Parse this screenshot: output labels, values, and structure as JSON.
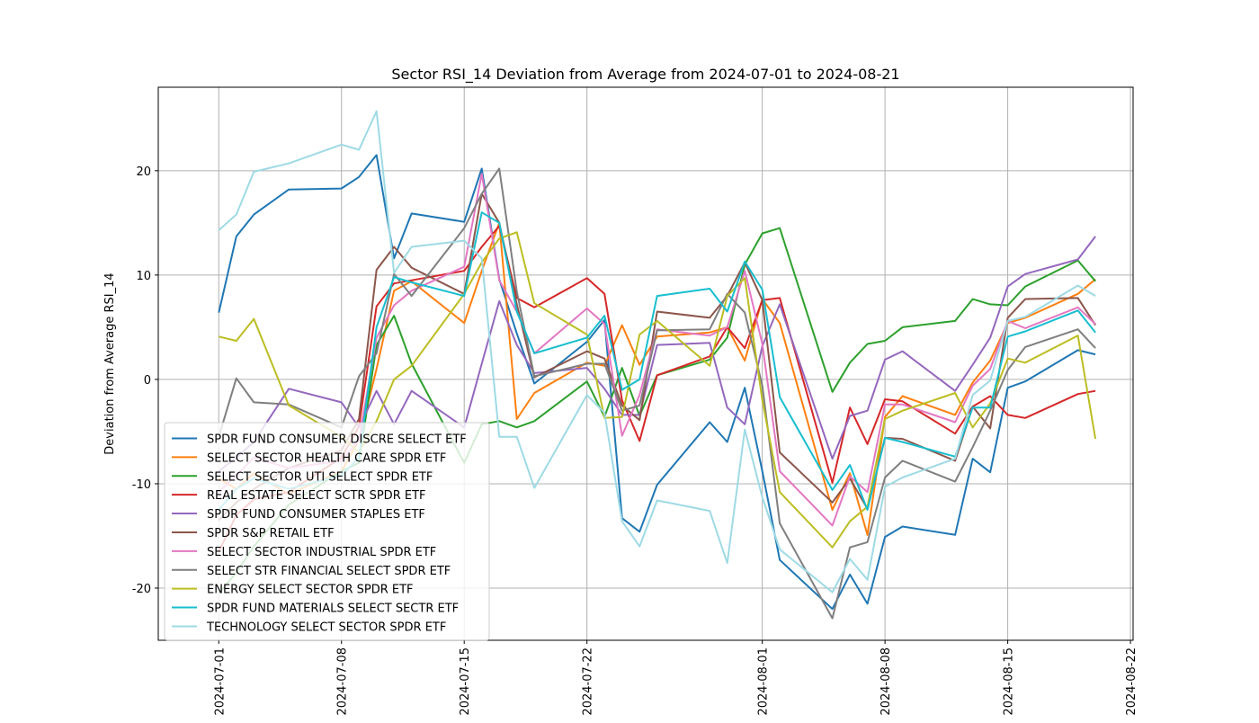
{
  "chart_data": {
    "type": "line",
    "title": "Sector RSI_14 Deviation from Average from 2024-07-01 to 2024-08-21",
    "xlabel": "",
    "ylabel": "Deviation from Average RSI_14",
    "xlim": [
      "2024-07-01",
      "2024-08-22"
    ],
    "ylim": [
      -25,
      28
    ],
    "xticks": [
      "2024-07-01",
      "2024-07-08",
      "2024-07-15",
      "2024-07-22",
      "2024-08-01",
      "2024-08-08",
      "2024-08-15",
      "2024-08-22"
    ],
    "yticks": [
      -20,
      -10,
      0,
      10,
      20
    ],
    "grid": true,
    "legend_position": "lower-left",
    "x": [
      "2024-07-01",
      "2024-07-02",
      "2024-07-03",
      "2024-07-05",
      "2024-07-08",
      "2024-07-09",
      "2024-07-10",
      "2024-07-11",
      "2024-07-12",
      "2024-07-15",
      "2024-07-16",
      "2024-07-17",
      "2024-07-18",
      "2024-07-19",
      "2024-07-22",
      "2024-07-23",
      "2024-07-24",
      "2024-07-25",
      "2024-07-26",
      "2024-07-29",
      "2024-07-30",
      "2024-07-31",
      "2024-08-01",
      "2024-08-02",
      "2024-08-05",
      "2024-08-06",
      "2024-08-07",
      "2024-08-08",
      "2024-08-09",
      "2024-08-12",
      "2024-08-13",
      "2024-08-14",
      "2024-08-15",
      "2024-08-16",
      "2024-08-19",
      "2024-08-20"
    ],
    "series": [
      {
        "name": "SPDR FUND CONSUMER DISCRE SELECT ETF",
        "color": "#1f77b4",
        "values": [
          6.4,
          13.7,
          15.8,
          18.2,
          18.3,
          19.4,
          21.5,
          11.6,
          15.9,
          15.1,
          20.2,
          9.6,
          4.4,
          -0.4,
          3.6,
          5.7,
          -13.3,
          -14.6,
          -10.1,
          -4.1,
          -6.0,
          -0.8,
          -8.8,
          -17.3,
          -22.0,
          -18.7,
          -21.5,
          -15.1,
          -14.1,
          -14.9,
          -7.6,
          -8.9,
          -0.8,
          -0.2,
          2.8,
          2.4
        ]
      },
      {
        "name": "SELECT SECTOR HEALTH CARE SPDR ETF",
        "color": "#ff7f0e",
        "values": [
          -9.5,
          -10.5,
          -9.0,
          -11.0,
          -8.8,
          -5.8,
          1.0,
          8.5,
          9.4,
          5.4,
          10.4,
          15.0,
          -3.8,
          -1.3,
          1.6,
          1.3,
          5.2,
          1.4,
          4.1,
          4.5,
          5.0,
          1.8,
          7.7,
          5.4,
          -12.5,
          -9.0,
          -14.9,
          -3.6,
          -1.6,
          -3.4,
          -0.3,
          1.8,
          5.4,
          5.9,
          8.2,
          9.6
        ]
      },
      {
        "name": "SELECT SECTOR UTI SELECT SPDR ETF",
        "color": "#2ca02c",
        "values": [
          -20.5,
          -18.5,
          -16.0,
          -12.0,
          -8.8,
          -8.0,
          3.3,
          6.1,
          1.5,
          -8.0,
          -4.3,
          -4.0,
          -4.6,
          -4.0,
          -0.2,
          -3.6,
          1.1,
          -3.5,
          0.4,
          1.9,
          4.0,
          11.0,
          14.0,
          14.5,
          -1.2,
          1.6,
          3.4,
          3.7,
          5.0,
          5.6,
          7.7,
          7.2,
          7.1,
          8.9,
          11.4,
          9.4
        ]
      },
      {
        "name": "REAL ESTATE SELECT SCTR SPDR ETF",
        "color": "#d62728",
        "values": [
          -16.5,
          -13.0,
          -11.5,
          -10.8,
          -7.5,
          -4.5,
          7.0,
          9.2,
          9.5,
          10.4,
          12.7,
          14.7,
          7.8,
          6.9,
          9.7,
          8.2,
          -2.0,
          -5.9,
          0.4,
          2.2,
          5.0,
          3.0,
          7.6,
          7.8,
          -9.9,
          -2.7,
          -6.2,
          -1.9,
          -2.1,
          -5.2,
          -2.6,
          -1.6,
          -3.4,
          -3.7,
          -1.4,
          -1.1
        ]
      },
      {
        "name": "SPDR FUND CONSUMER STAPLES ETF",
        "color": "#9467bd",
        "values": [
          -8.8,
          -7.5,
          -6.0,
          -0.9,
          -2.2,
          -4.6,
          -1.1,
          -4.3,
          -1.1,
          -4.6,
          1.5,
          7.5,
          3.3,
          0.6,
          1.1,
          -0.9,
          -3.4,
          -3.4,
          3.3,
          3.5,
          -2.7,
          -4.3,
          3.2,
          7.2,
          -7.6,
          -3.5,
          -3.0,
          1.9,
          2.7,
          -1.1,
          1.4,
          4.0,
          8.9,
          10.1,
          11.5,
          13.7
        ]
      },
      {
        "name": "SPDR S&P RETAIL ETF",
        "color": "#8c564b",
        "values": [
          -13.5,
          -11.8,
          -10.5,
          -8.5,
          -6.8,
          -3.8,
          10.5,
          12.7,
          10.7,
          8.2,
          17.8,
          15.0,
          7.2,
          0.2,
          2.7,
          2.0,
          -2.5,
          -3.9,
          6.5,
          5.9,
          8.0,
          11.2,
          7.6,
          -7.0,
          -11.8,
          -9.5,
          -12.4,
          -5.6,
          -5.7,
          -7.8,
          -2.6,
          -4.7,
          5.9,
          7.7,
          7.8,
          5.2
        ]
      },
      {
        "name": "SELECT SECTOR INDUSTRIAL SPDR ETF",
        "color": "#e377c2",
        "values": [
          -10.8,
          -9.2,
          -7.5,
          -8.5,
          -7.8,
          -5.8,
          4.0,
          7.1,
          8.5,
          10.8,
          19.7,
          9.5,
          6.5,
          2.5,
          6.8,
          5.3,
          -5.4,
          -1.5,
          4.8,
          4.2,
          5.0,
          10.4,
          3.4,
          -8.8,
          -14.0,
          -9.3,
          -10.8,
          -2.4,
          -2.4,
          -4.1,
          -0.6,
          1.0,
          5.6,
          4.9,
          6.9,
          5.3
        ]
      },
      {
        "name": "SELECT STR FINANCIAL SELECT SPDR ETF",
        "color": "#7f7f7f",
        "values": [
          -5.5,
          0.1,
          -2.2,
          -2.4,
          -4.6,
          0.3,
          2.5,
          10.1,
          8.0,
          14.5,
          17.8,
          20.2,
          8.4,
          0.3,
          1.5,
          1.5,
          -3.0,
          -2.5,
          4.7,
          4.8,
          8.2,
          6.4,
          -0.6,
          -13.8,
          -22.9,
          -16.1,
          -15.6,
          -9.4,
          -7.8,
          -9.8,
          -6.5,
          -3.0,
          0.9,
          3.1,
          4.8,
          3.0
        ]
      },
      {
        "name": "ENERGY SELECT SECTOR SPDR ETF",
        "color": "#bcbd22",
        "values": [
          4.1,
          3.7,
          5.8,
          -2.5,
          -5.5,
          -7.0,
          -4.0,
          0.0,
          1.3,
          8.2,
          11.2,
          13.5,
          14.1,
          7.3,
          4.3,
          -3.7,
          -3.6,
          4.3,
          5.6,
          1.3,
          8.0,
          9.7,
          -2.0,
          -10.8,
          -16.1,
          -13.6,
          -12.2,
          -3.8,
          -3.0,
          -1.3,
          -4.6,
          -2.3,
          2.0,
          1.6,
          4.2,
          -5.7
        ]
      },
      {
        "name": "SPDR FUND MATERIALS SELECT SECTR ETF",
        "color": "#17becf",
        "values": [
          -12.5,
          -10.5,
          -9.5,
          -10.5,
          -9.2,
          -7.5,
          5.0,
          9.8,
          9.3,
          8.0,
          16.0,
          15.0,
          6.5,
          2.5,
          4.0,
          6.1,
          -1.0,
          0.0,
          8.0,
          8.7,
          6.5,
          11.3,
          8.6,
          -1.7,
          -10.6,
          -8.2,
          -12.5,
          -5.6,
          -6.0,
          -7.4,
          -2.7,
          -2.7,
          4.1,
          4.6,
          6.6,
          4.5
        ]
      },
      {
        "name": "TECHNOLOGY SELECT SECTOR SPDR ETF",
        "color": "#9edae5",
        "values": [
          14.3,
          15.8,
          19.9,
          20.7,
          22.5,
          22.0,
          25.7,
          10.2,
          12.7,
          13.3,
          11.6,
          -5.5,
          -5.5,
          -10.4,
          -1.5,
          -3.2,
          -13.6,
          -16.0,
          -11.6,
          -12.6,
          -17.6,
          -4.8,
          -11.3,
          -16.3,
          -20.4,
          -17.2,
          -19.2,
          -10.3,
          -9.4,
          -7.6,
          -1.5,
          -0.1,
          5.6,
          6.0,
          9.0,
          8.0
        ]
      }
    ]
  }
}
